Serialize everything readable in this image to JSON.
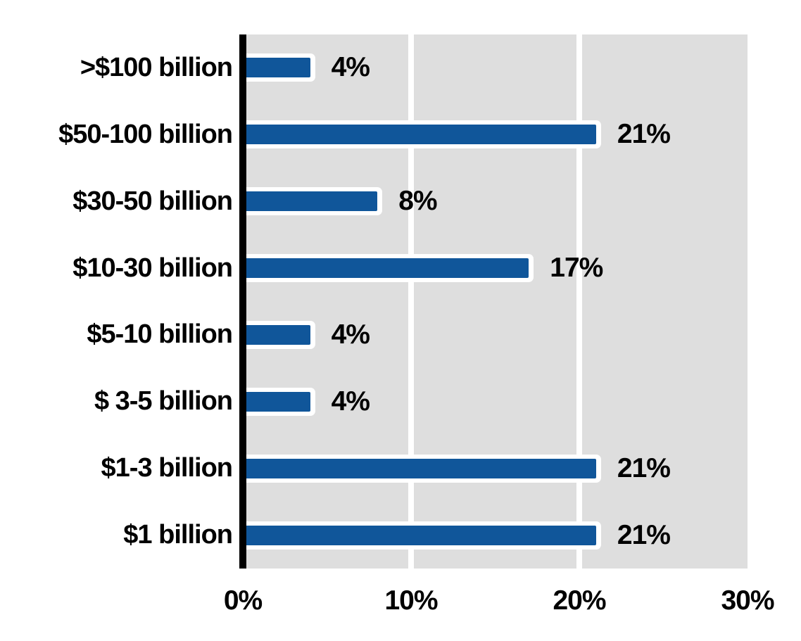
{
  "chart_data": {
    "type": "bar",
    "orientation": "horizontal",
    "title": "",
    "xlabel": "",
    "ylabel": "",
    "categories": [
      ">$100 billion",
      "$50-100 billion",
      "$30-50 billion",
      "$10-30 billion",
      "$5-10 billion",
      "$ 3-5 billion",
      "$1-3 billion",
      "$1 billion"
    ],
    "values": [
      4,
      21,
      8,
      17,
      4,
      4,
      21,
      21
    ],
    "data_labels": [
      "4%",
      "21%",
      "8%",
      "17%",
      "4%",
      "4%",
      "21%",
      "21%"
    ],
    "x_ticks": [
      "0%",
      "10%",
      "20%",
      "30%"
    ],
    "x_tick_values": [
      0,
      10,
      20,
      30
    ],
    "xlim": [
      0,
      30
    ],
    "gridline_values": [
      10,
      20
    ],
    "legend": null,
    "layout": {
      "grid": "vertical white gridlines on gray plot background",
      "zero_axis": "thick black vertical line at 0%",
      "bar_style": "blue fill with white outline, value labels right of bar tips"
    },
    "colors": {
      "bar_fill": "#10569A",
      "bar_border": "#FFFFFF",
      "plot_background": "#DEDEDE",
      "gridline": "#FFFFFF",
      "zero_axis": "#000000",
      "text": "#000000",
      "page_background": "#FFFFFF"
    }
  }
}
